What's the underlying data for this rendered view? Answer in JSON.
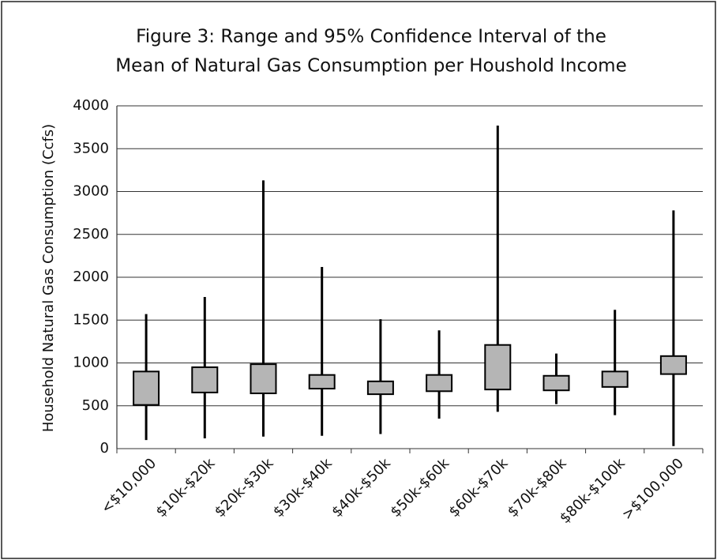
{
  "chart_data": {
    "type": "box",
    "title": [
      "Figure 3: Range and 95% Confidence Interval of the",
      "Mean of Natural Gas Consumption per Houshold Income"
    ],
    "y_label": "Household Natural Gas Consumption (Ccfs)",
    "categories": [
      "<$10,000",
      "$10k-$20k",
      "$20k-$30k",
      "$30k-$40k",
      "$40k-$50k",
      "$50k-$60k",
      "$60k-$70k",
      "$70k-$80k",
      "$80k-$100k",
      ">$100,000"
    ],
    "min": [
      100,
      120,
      140,
      150,
      170,
      350,
      430,
      520,
      390,
      30
    ],
    "max": [
      1570,
      1770,
      3130,
      2120,
      1510,
      1380,
      3770,
      1110,
      1620,
      2780
    ],
    "ci_low": [
      510,
      655,
      645,
      700,
      635,
      670,
      690,
      680,
      720,
      870
    ],
    "ci_high": [
      900,
      950,
      985,
      860,
      785,
      860,
      1210,
      850,
      900,
      1080
    ],
    "color": "#b5b5b5",
    "ylim": [
      0,
      4000
    ],
    "yticks": [
      0,
      500,
      1000,
      1500,
      2000,
      2500,
      3000,
      3500,
      4000
    ],
    "grid": true
  }
}
